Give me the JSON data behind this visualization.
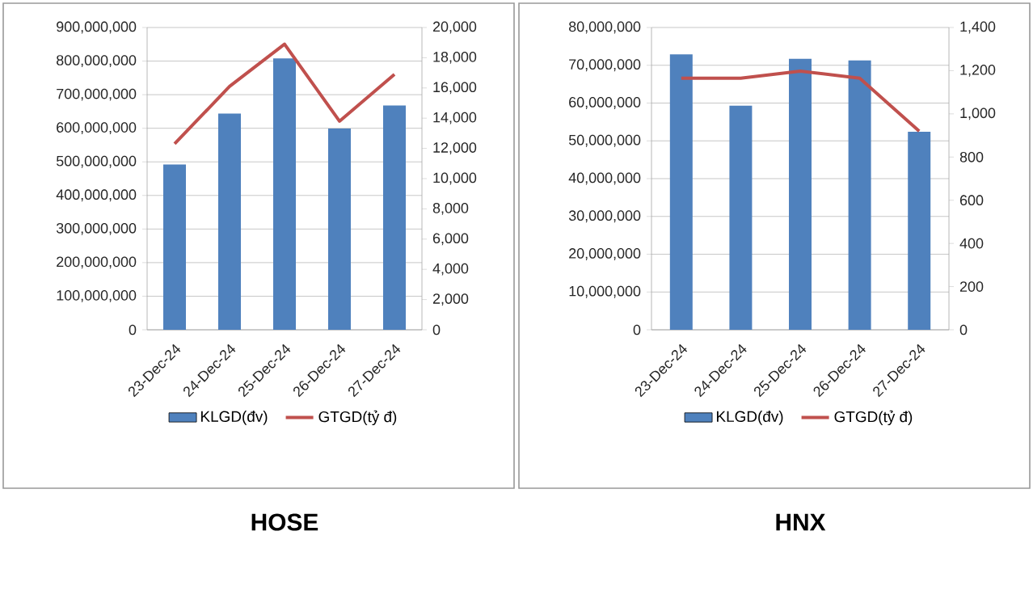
{
  "chart_data": [
    {
      "type": "bar",
      "title": "HOSE",
      "categories": [
        "23-Dec-24",
        "24-Dec-24",
        "25-Dec-24",
        "26-Dec-24",
        "27-Dec-24"
      ],
      "series": [
        {
          "name": "KLGD(đv)",
          "color": "#4f81bd",
          "values": [
            492000000,
            644000000,
            808000000,
            599000000,
            668000000
          ]
        },
        {
          "name": "GTGD(tỷ đ)",
          "type": "line",
          "axis": "y2",
          "color": "#c0504d",
          "values": [
            12300,
            16100,
            18900,
            13800,
            16900
          ]
        }
      ],
      "ylim": [
        0,
        900000000
      ],
      "yticks": [
        0,
        {
          "value": 100000000,
          "label": "100,000,000"
        },
        {
          "value": 200000000,
          "label": "200,000,000"
        },
        {
          "value": 300000000,
          "label": "300,000,000"
        },
        {
          "value": 400000000,
          "label": "400,000,000"
        },
        {
          "value": 500000000,
          "label": "500,000,000"
        },
        {
          "value": 600000000,
          "label": "600,000,000"
        },
        {
          "value": 700000000,
          "label": "700,000,000"
        },
        {
          "value": 800000000,
          "label": "800,000,000"
        },
        {
          "value": 900000000,
          "label": "900,000,000"
        }
      ],
      "y2lim": [
        0,
        20000
      ],
      "y2ticks": [
        0,
        {
          "value": 2000,
          "label": "2,000"
        },
        {
          "value": 4000,
          "label": "4,000"
        },
        {
          "value": 6000,
          "label": "6,000"
        },
        {
          "value": 8000,
          "label": "8,000"
        },
        {
          "value": 10000,
          "label": "10,000"
        },
        {
          "value": 12000,
          "label": "12,000"
        },
        {
          "value": 14000,
          "label": "14,000"
        },
        {
          "value": 16000,
          "label": "16,000"
        },
        {
          "value": 18000,
          "label": "18,000"
        },
        {
          "value": 20000,
          "label": "20,000"
        }
      ],
      "grid": "y",
      "legend": "bottom"
    },
    {
      "type": "bar",
      "title": "HNX",
      "categories": [
        "23-Dec-24",
        "24-Dec-24",
        "25-Dec-24",
        "26-Dec-24",
        "27-Dec-24"
      ],
      "series": [
        {
          "name": "KLGD(đv)",
          "color": "#4f81bd",
          "values": [
            72900000,
            59300000,
            71700000,
            71300000,
            52400000
          ]
        },
        {
          "name": "GTGD(tỷ đ)",
          "type": "line",
          "axis": "y2",
          "color": "#c0504d",
          "values": [
            1165,
            1165,
            1198,
            1165,
            920
          ]
        }
      ],
      "ylim": [
        0,
        80000000
      ],
      "yticks": [
        0,
        {
          "value": 10000000,
          "label": "10,000,000"
        },
        {
          "value": 20000000,
          "label": "20,000,000"
        },
        {
          "value": 30000000,
          "label": "30,000,000"
        },
        {
          "value": 40000000,
          "label": "40,000,000"
        },
        {
          "value": 50000000,
          "label": "50,000,000"
        },
        {
          "value": 60000000,
          "label": "60,000,000"
        },
        {
          "value": 70000000,
          "label": "70,000,000"
        },
        {
          "value": 80000000,
          "label": "80,000,000"
        }
      ],
      "y2lim": [
        0,
        1400
      ],
      "y2ticks": [
        0,
        200,
        400,
        600,
        800,
        {
          "value": 1000,
          "label": "1,000"
        },
        {
          "value": 1200,
          "label": "1,200"
        },
        {
          "value": 1400,
          "label": "1,400"
        }
      ],
      "grid": "y",
      "legend": "bottom"
    }
  ]
}
